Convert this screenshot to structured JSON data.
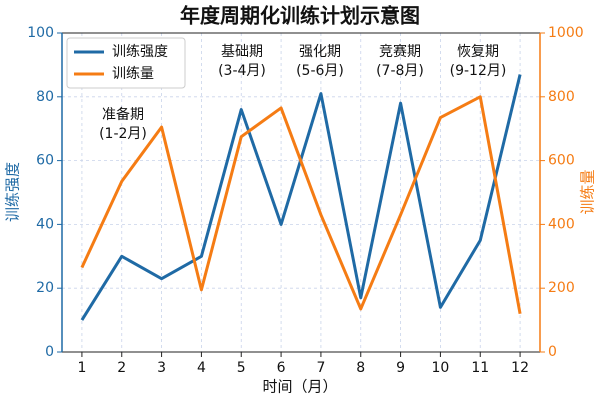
{
  "chart_data": {
    "type": "line",
    "title": "年度周期化训练计划示意图",
    "x_label": "时间（月）",
    "y_label": "训练强度",
    "y2_label": "训练量",
    "x": [
      1,
      2,
      3,
      4,
      5,
      6,
      7,
      8,
      9,
      10,
      11,
      12
    ],
    "xlim": [
      0.5,
      12.5
    ],
    "xticks": [
      1,
      2,
      3,
      4,
      5,
      6,
      7,
      8,
      9,
      10,
      11,
      12
    ],
    "ylim": [
      0,
      100
    ],
    "yticks": [
      0,
      20,
      40,
      60,
      80,
      100
    ],
    "y2lim": [
      0,
      1000
    ],
    "y2ticks": [
      0,
      200,
      400,
      600,
      800,
      1000
    ],
    "grid": true,
    "legend": "upper left",
    "series": [
      {
        "name": "训练强度",
        "color": "#1f6aa5",
        "values": [
          10,
          30,
          23,
          30,
          76,
          40,
          81,
          17,
          78,
          14,
          35,
          87
        ]
      },
      {
        "name": "训练量",
        "color": "#f57c14",
        "axis": "y2",
        "values": [
          265,
          535,
          705,
          195,
          675,
          765,
          430,
          135,
          430,
          735,
          800,
          120
        ]
      }
    ],
    "annotations": [
      {
        "lines": [
          "准备期",
          "(1-2月)"
        ]
      },
      {
        "lines": [
          "基础期",
          "(3-4月)"
        ]
      },
      {
        "lines": [
          "强化期",
          "(5-6月)"
        ]
      },
      {
        "lines": [
          "竞赛期",
          "(7-8月)"
        ]
      },
      {
        "lines": [
          "恢复期",
          "(9-12月)"
        ]
      }
    ]
  }
}
